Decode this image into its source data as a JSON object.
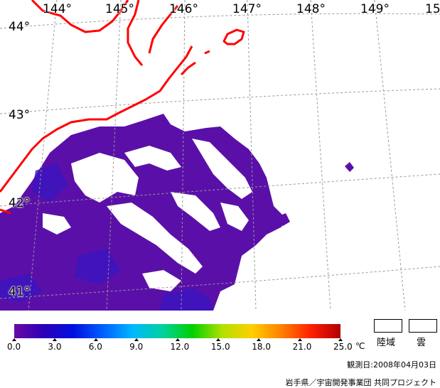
{
  "map": {
    "lon_labels": [
      "144°",
      "145°",
      "146°",
      "147°",
      "148°",
      "149°",
      "15"
    ],
    "lat_labels": [
      "44°",
      "43°",
      "42°",
      "41°"
    ]
  },
  "colorbar": {
    "colors": [
      "#6a0aa3",
      "#2a00b8",
      "#0010e0",
      "#0060ff",
      "#00b8ff",
      "#00d2a0",
      "#00d000",
      "#b0e000",
      "#ffd000",
      "#ff8000",
      "#ff2000",
      "#b00000"
    ],
    "ticks": [
      "0.0",
      "3.0",
      "6.0",
      "9.0",
      "12.0",
      "15.0",
      "18.0",
      "21.0",
      "25.0"
    ],
    "unit": "℃"
  },
  "legend": {
    "land_label": "陸域",
    "cloud_label": "雲"
  },
  "obs_date": "観測日:2008年04月03日",
  "credit": "岩手県／宇宙開発事業団 共同プロジェクト",
  "colors": {
    "coastline": "#ff0000",
    "sea_temp": "#5a10a8",
    "grid": "#999999"
  }
}
